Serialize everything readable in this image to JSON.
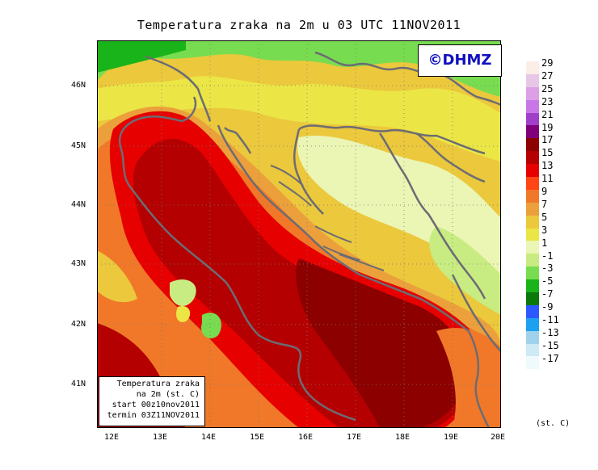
{
  "title": "Temperatura zraka na 2m u 03 UTC 11NOV2011",
  "logo": "©DHMZ",
  "info": {
    "line1": "Temperatura zraka",
    "line2": "na 2m (st. C)",
    "line3": "start 00z10nov2011",
    "line4": "termin 03Z11NOV2011"
  },
  "lat_ticks": [
    "46N",
    "45N",
    "44N",
    "43N",
    "42N",
    "41N"
  ],
  "lon_ticks": [
    "12E",
    "13E",
    "14E",
    "15E",
    "16E",
    "17E",
    "18E",
    "19E",
    "20E"
  ],
  "colorbar": {
    "labels": [
      "29",
      "27",
      "25",
      "23",
      "21",
      "19",
      "17",
      "15",
      "13",
      "11",
      "9",
      "7",
      "5",
      "3",
      "1",
      "-1",
      "-3",
      "-5",
      "-7",
      "-9",
      "-11",
      "-13",
      "-15",
      "-17"
    ],
    "colors": [
      "#fbeee6",
      "#e6c8e6",
      "#dca0e6",
      "#c878e6",
      "#a040c8",
      "#80007a",
      "#8c0000",
      "#b40000",
      "#e60000",
      "#ff4614",
      "#f07828",
      "#eba03c",
      "#ebc83c",
      "#ebe646",
      "#ebf5b4",
      "#c8ec82",
      "#78dc50",
      "#19b419",
      "#0a780a",
      "#2e58ff",
      "#1ea0f0",
      "#a0d2eb",
      "#cdeaf5",
      "#f0fafc"
    ],
    "unit": "(st. C)"
  }
}
